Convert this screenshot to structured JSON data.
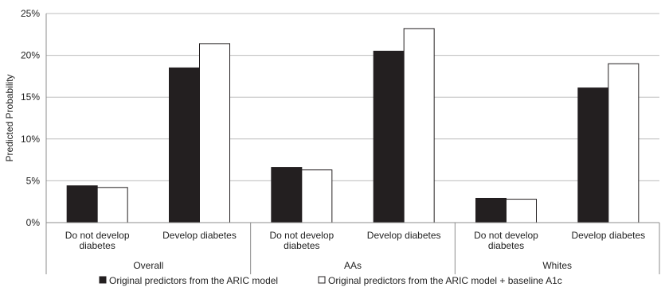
{
  "chart_data": {
    "type": "bar",
    "ylabel": "Predicted Probability",
    "ylim": [
      0,
      25
    ],
    "yticks": [
      "0%",
      "5%",
      "10%",
      "15%",
      "20%",
      "25%"
    ],
    "ytick_values": [
      0,
      5,
      10,
      15,
      20,
      25
    ],
    "grid": true,
    "legend_position": "bottom",
    "categories": [
      {
        "label": [
          "Do not develop",
          "diabetes"
        ],
        "group": 0
      },
      {
        "label": [
          "Develop diabetes"
        ],
        "group": 0
      },
      {
        "label": [
          "Do not develop",
          "diabetes"
        ],
        "group": 1
      },
      {
        "label": [
          "Develop diabetes"
        ],
        "group": 1
      },
      {
        "label": [
          "Do not develop",
          "diabetes"
        ],
        "group": 2
      },
      {
        "label": [
          "Develop diabetes"
        ],
        "group": 2
      }
    ],
    "groups": [
      "Overall",
      "AAs",
      "Whites"
    ],
    "series": [
      {
        "name": "Original predictors from the ARIC model",
        "color": "#231f20",
        "values": [
          4.4,
          18.5,
          6.6,
          20.5,
          2.9,
          16.1
        ]
      },
      {
        "name": "Original predictors from the ARIC model + baseline A1c",
        "color": "#ffffff",
        "values": [
          4.2,
          21.4,
          6.3,
          23.2,
          2.8,
          19.0
        ]
      }
    ]
  }
}
